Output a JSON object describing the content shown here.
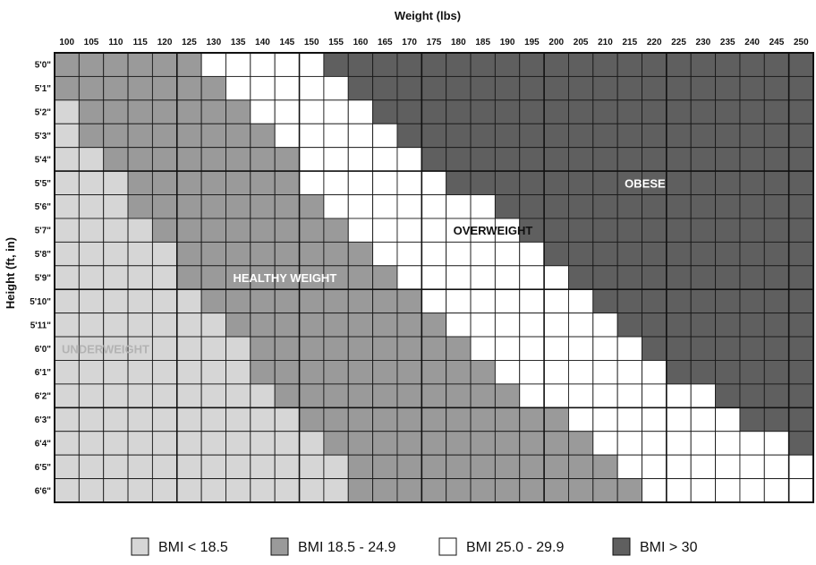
{
  "chart_data": {
    "type": "heatmap",
    "xlabel": "Weight (lbs)",
    "ylabel": "Height (ft, in)",
    "x": [
      "100",
      "105",
      "110",
      "115",
      "120",
      "125",
      "130",
      "135",
      "140",
      "145",
      "150",
      "155",
      "160",
      "165",
      "170",
      "175",
      "180",
      "185",
      "190",
      "195",
      "200",
      "205",
      "210",
      "215",
      "220",
      "225",
      "230",
      "235",
      "240",
      "245",
      "250"
    ],
    "y": [
      "5'0\"",
      "5'1\"",
      "5'2\"",
      "5'3\"",
      "5'4\"",
      "5'5\"",
      "5'6\"",
      "5'7\"",
      "5'8\"",
      "5'9\"",
      "5'10\"",
      "5'11\"",
      "6'0\"",
      "6'1\"",
      "6'2\"",
      "6'3\"",
      "6'4\"",
      "6'5\"",
      "6'6\""
    ],
    "category_ranges": [
      {
        "height": "5'0\"",
        "underweight_max_lbs": null,
        "healthy_max_lbs": 125,
        "overweight_max_lbs": 150
      },
      {
        "height": "5'1\"",
        "underweight_max_lbs": null,
        "healthy_max_lbs": 130,
        "overweight_max_lbs": 155
      },
      {
        "height": "5'2\"",
        "underweight_max_lbs": 100,
        "healthy_max_lbs": 135,
        "overweight_max_lbs": 160
      },
      {
        "height": "5'3\"",
        "underweight_max_lbs": 100,
        "healthy_max_lbs": 140,
        "overweight_max_lbs": 165
      },
      {
        "height": "5'4\"",
        "underweight_max_lbs": 105,
        "healthy_max_lbs": 145,
        "overweight_max_lbs": 170
      },
      {
        "height": "5'5\"",
        "underweight_max_lbs": 110,
        "healthy_max_lbs": 145,
        "overweight_max_lbs": 175
      },
      {
        "height": "5'6\"",
        "underweight_max_lbs": 110,
        "healthy_max_lbs": 150,
        "overweight_max_lbs": 185
      },
      {
        "height": "5'7\"",
        "underweight_max_lbs": 115,
        "healthy_max_lbs": 155,
        "overweight_max_lbs": 190
      },
      {
        "height": "5'8\"",
        "underweight_max_lbs": 120,
        "healthy_max_lbs": 160,
        "overweight_max_lbs": 195
      },
      {
        "height": "5'9\"",
        "underweight_max_lbs": 120,
        "healthy_max_lbs": 165,
        "overweight_max_lbs": 200
      },
      {
        "height": "5'10\"",
        "underweight_max_lbs": 125,
        "healthy_max_lbs": 170,
        "overweight_max_lbs": 205
      },
      {
        "height": "5'11\"",
        "underweight_max_lbs": 130,
        "healthy_max_lbs": 175,
        "overweight_max_lbs": 210
      },
      {
        "height": "6'0\"",
        "underweight_max_lbs": 135,
        "healthy_max_lbs": 180,
        "overweight_max_lbs": 215
      },
      {
        "height": "6'1\"",
        "underweight_max_lbs": 135,
        "healthy_max_lbs": 185,
        "overweight_max_lbs": 220
      },
      {
        "height": "6'2\"",
        "underweight_max_lbs": 140,
        "healthy_max_lbs": 190,
        "overweight_max_lbs": 230
      },
      {
        "height": "6'3\"",
        "underweight_max_lbs": 145,
        "healthy_max_lbs": 200,
        "overweight_max_lbs": 235
      },
      {
        "height": "6'4\"",
        "underweight_max_lbs": 150,
        "healthy_max_lbs": 205,
        "overweight_max_lbs": 245
      },
      {
        "height": "6'5\"",
        "underweight_max_lbs": 155,
        "healthy_max_lbs": 210,
        "overweight_max_lbs": 250
      },
      {
        "height": "6'6\"",
        "underweight_max_lbs": 155,
        "healthy_max_lbs": 215,
        "overweight_max_lbs": 250
      }
    ],
    "zones": [
      {
        "label": "UNDERWEIGHT",
        "color": "#b3b3b3",
        "weight": 100,
        "height": "6'0\""
      },
      {
        "label": "HEALTHY WEIGHT",
        "color": "#ffffff",
        "weight": 135,
        "height": "5'9\""
      },
      {
        "label": "OVERWEIGHT",
        "color": "#111111",
        "weight": 180,
        "height": "5'7\""
      },
      {
        "label": "OBESE",
        "color": "#ffffff",
        "weight": 215,
        "height": "5'5\""
      }
    ],
    "legend": [
      {
        "label": "BMI < 18.5",
        "color": "#d6d6d6"
      },
      {
        "label": "BMI 18.5 - 24.9",
        "color": "#9a9a9a"
      },
      {
        "label": "BMI 25.0 - 29.9",
        "color": "#ffffff"
      },
      {
        "label": "BMI > 30",
        "color": "#5f5f5f"
      }
    ],
    "legend_position": "bottom",
    "grid": true
  }
}
